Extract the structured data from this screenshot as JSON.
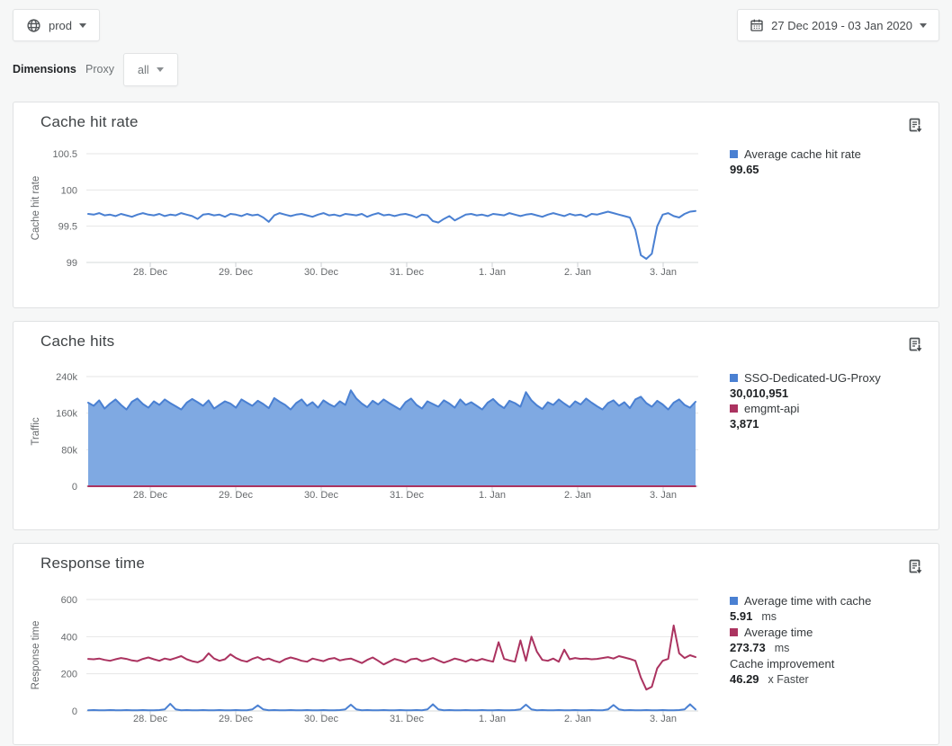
{
  "toolbar": {
    "env_label": "prod",
    "date_range": "27 Dec 2019 - 03 Jan 2020"
  },
  "filters": {
    "dimensions_label": "Dimensions",
    "proxy_label": "Proxy",
    "proxy_value": "all"
  },
  "colors": {
    "blue": "#4a80d2",
    "blue_fill": "#7fa9e2",
    "crimson": "#ab3360",
    "grid": "#e6e6e6"
  },
  "icons": [
    "globe-icon",
    "calendar-icon",
    "caret-down-icon",
    "export-report-icon"
  ],
  "chart_data": [
    {
      "type": "line",
      "title": "Cache hit rate",
      "xlabel": "",
      "ylabel": "Cache hit rate",
      "ylim": [
        99,
        100.5
      ],
      "grid": true,
      "legend_position": "right",
      "yticks": [
        {
          "v": 100.5,
          "label": "100.5"
        },
        {
          "v": 100,
          "label": "100"
        },
        {
          "v": 99.5,
          "label": "99.5"
        },
        {
          "v": 99,
          "label": "99"
        }
      ],
      "categories": [
        "28. Dec",
        "29. Dec",
        "30. Dec",
        "31. Dec",
        "1. Jan",
        "2. Jan",
        "3. Jan"
      ],
      "legend": [
        {
          "color": "#4a80d2",
          "label": "Average cache hit rate",
          "value": "99.65",
          "unit": ""
        }
      ],
      "series": [
        {
          "name": "Average cache hit rate",
          "type": "line",
          "color": "#4a80d2",
          "values": [
            99.67,
            99.66,
            99.68,
            99.65,
            99.66,
            99.64,
            99.67,
            99.65,
            99.63,
            99.66,
            99.68,
            99.66,
            99.65,
            99.67,
            99.64,
            99.66,
            99.65,
            99.68,
            99.66,
            99.64,
            99.6,
            99.66,
            99.67,
            99.65,
            99.66,
            99.63,
            99.67,
            99.66,
            99.64,
            99.67,
            99.65,
            99.66,
            99.62,
            99.56,
            99.65,
            99.68,
            99.66,
            99.64,
            99.66,
            99.67,
            99.65,
            99.63,
            99.66,
            99.68,
            99.65,
            99.66,
            99.64,
            99.67,
            99.66,
            99.65,
            99.67,
            99.63,
            99.66,
            99.68,
            99.65,
            99.66,
            99.64,
            99.66,
            99.67,
            99.65,
            99.62,
            99.66,
            99.65,
            99.57,
            99.55,
            99.6,
            99.64,
            99.58,
            99.62,
            99.66,
            99.67,
            99.65,
            99.66,
            99.64,
            99.67,
            99.66,
            99.65,
            99.68,
            99.66,
            99.64,
            99.66,
            99.67,
            99.65,
            99.63,
            99.66,
            99.68,
            99.66,
            99.64,
            99.67,
            99.65,
            99.66,
            99.63,
            99.67,
            99.66,
            99.68,
            99.7,
            99.68,
            99.66,
            99.64,
            99.62,
            99.45,
            99.1,
            99.05,
            99.12,
            99.5,
            99.66,
            99.68,
            99.64,
            99.62,
            99.67,
            99.7,
            99.71
          ]
        }
      ]
    },
    {
      "type": "area",
      "title": "Cache hits",
      "xlabel": "",
      "ylabel": "Traffic",
      "ylim": [
        0,
        240000
      ],
      "grid": true,
      "legend_position": "right",
      "yticks": [
        {
          "v": 240000,
          "label": "240k"
        },
        {
          "v": 160000,
          "label": "160k"
        },
        {
          "v": 80000,
          "label": "80k"
        },
        {
          "v": 0,
          "label": "0"
        }
      ],
      "categories": [
        "28. Dec",
        "29. Dec",
        "30. Dec",
        "31. Dec",
        "1. Jan",
        "2. Jan",
        "3. Jan"
      ],
      "legend": [
        {
          "color": "#4a80d2",
          "label": "SSO-Dedicated-UG-Proxy",
          "value": "30,010,951",
          "unit": ""
        },
        {
          "color": "#ab3360",
          "label": "emgmt-api",
          "value": "3,871",
          "unit": ""
        }
      ],
      "series": [
        {
          "name": "SSO-Dedicated-UG-Proxy",
          "type": "area",
          "color": "#4a80d2",
          "fill": "#7fa9e2",
          "values": [
            183000,
            176000,
            188000,
            170000,
            181000,
            190000,
            178000,
            168000,
            185000,
            192000,
            180000,
            172000,
            186000,
            178000,
            190000,
            182000,
            175000,
            168000,
            183000,
            191000,
            184000,
            176000,
            188000,
            170000,
            178000,
            186000,
            181000,
            172000,
            190000,
            183000,
            176000,
            187000,
            180000,
            171000,
            193000,
            185000,
            178000,
            168000,
            182000,
            190000,
            176000,
            184000,
            172000,
            188000,
            180000,
            174000,
            186000,
            178000,
            210000,
            192000,
            181000,
            173000,
            187000,
            179000,
            190000,
            182000,
            175000,
            168000,
            184000,
            192000,
            178000,
            170000,
            186000,
            180000,
            174000,
            188000,
            181000,
            172000,
            190000,
            178000,
            184000,
            176000,
            168000,
            183000,
            191000,
            179000,
            171000,
            187000,
            182000,
            174000,
            206000,
            188000,
            177000,
            169000,
            184000,
            178000,
            190000,
            181000,
            173000,
            186000,
            179000,
            192000,
            183000,
            175000,
            168000,
            182000,
            188000,
            176000,
            184000,
            171000,
            190000,
            196000,
            182000,
            174000,
            187000,
            179000,
            168000,
            183000,
            190000,
            178000,
            172000,
            185000
          ]
        },
        {
          "name": "emgmt-api",
          "type": "line",
          "color": "#ab3360",
          "values": [
            30,
            30
          ]
        }
      ]
    },
    {
      "type": "line",
      "title": "Response time",
      "xlabel": "",
      "ylabel": "Response time",
      "ylim": [
        0,
        600
      ],
      "grid": true,
      "legend_position": "right",
      "yticks": [
        {
          "v": 600,
          "label": "600"
        },
        {
          "v": 400,
          "label": "400"
        },
        {
          "v": 200,
          "label": "200"
        },
        {
          "v": 0,
          "label": "0"
        }
      ],
      "categories": [
        "28. Dec",
        "29. Dec",
        "30. Dec",
        "31. Dec",
        "1. Jan",
        "2. Jan",
        "3. Jan"
      ],
      "legend": [
        {
          "color": "#4a80d2",
          "label": "Average time with cache",
          "value": "5.91",
          "unit": "ms"
        },
        {
          "color": "#ab3360",
          "label": "Average time",
          "value": "273.73",
          "unit": "ms"
        },
        {
          "color": null,
          "label": "Cache improvement",
          "value": "46.29",
          "unit": "x Faster"
        }
      ],
      "series": [
        {
          "name": "Average time",
          "type": "line",
          "color": "#ab3360",
          "values": [
            280,
            278,
            282,
            275,
            270,
            278,
            285,
            280,
            272,
            268,
            280,
            288,
            278,
            270,
            282,
            276,
            285,
            295,
            278,
            268,
            262,
            275,
            310,
            282,
            270,
            278,
            305,
            285,
            272,
            265,
            280,
            290,
            275,
            282,
            270,
            262,
            278,
            288,
            280,
            270,
            265,
            282,
            275,
            268,
            280,
            285,
            272,
            278,
            282,
            270,
            258,
            275,
            288,
            270,
            250,
            265,
            280,
            272,
            262,
            278,
            282,
            268,
            275,
            285,
            272,
            260,
            270,
            282,
            275,
            265,
            278,
            270,
            280,
            272,
            265,
            370,
            280,
            272,
            265,
            380,
            270,
            400,
            320,
            275,
            270,
            282,
            265,
            330,
            278,
            285,
            280,
            282,
            278,
            280,
            285,
            290,
            282,
            295,
            288,
            280,
            270,
            180,
            115,
            130,
            230,
            270,
            280,
            460,
            310,
            285,
            300,
            290
          ]
        },
        {
          "name": "Average time with cache",
          "type": "line",
          "color": "#4a80d2",
          "values": [
            4,
            5,
            4,
            4,
            5,
            4,
            4,
            5,
            4,
            4,
            5,
            4,
            4,
            5,
            8,
            38,
            8,
            4,
            5,
            4,
            4,
            5,
            4,
            4,
            5,
            4,
            4,
            5,
            4,
            4,
            8,
            30,
            8,
            4,
            5,
            4,
            4,
            5,
            4,
            4,
            5,
            4,
            4,
            5,
            4,
            4,
            5,
            8,
            34,
            8,
            4,
            5,
            4,
            4,
            5,
            4,
            4,
            5,
            4,
            4,
            5,
            4,
            8,
            36,
            8,
            4,
            5,
            4,
            4,
            5,
            4,
            4,
            5,
            4,
            4,
            5,
            4,
            4,
            5,
            8,
            34,
            8,
            4,
            5,
            4,
            4,
            5,
            4,
            4,
            5,
            4,
            4,
            5,
            4,
            4,
            8,
            32,
            8,
            4,
            5,
            4,
            4,
            5,
            4,
            4,
            5,
            4,
            4,
            5,
            8,
            36,
            8
          ]
        }
      ]
    }
  ]
}
